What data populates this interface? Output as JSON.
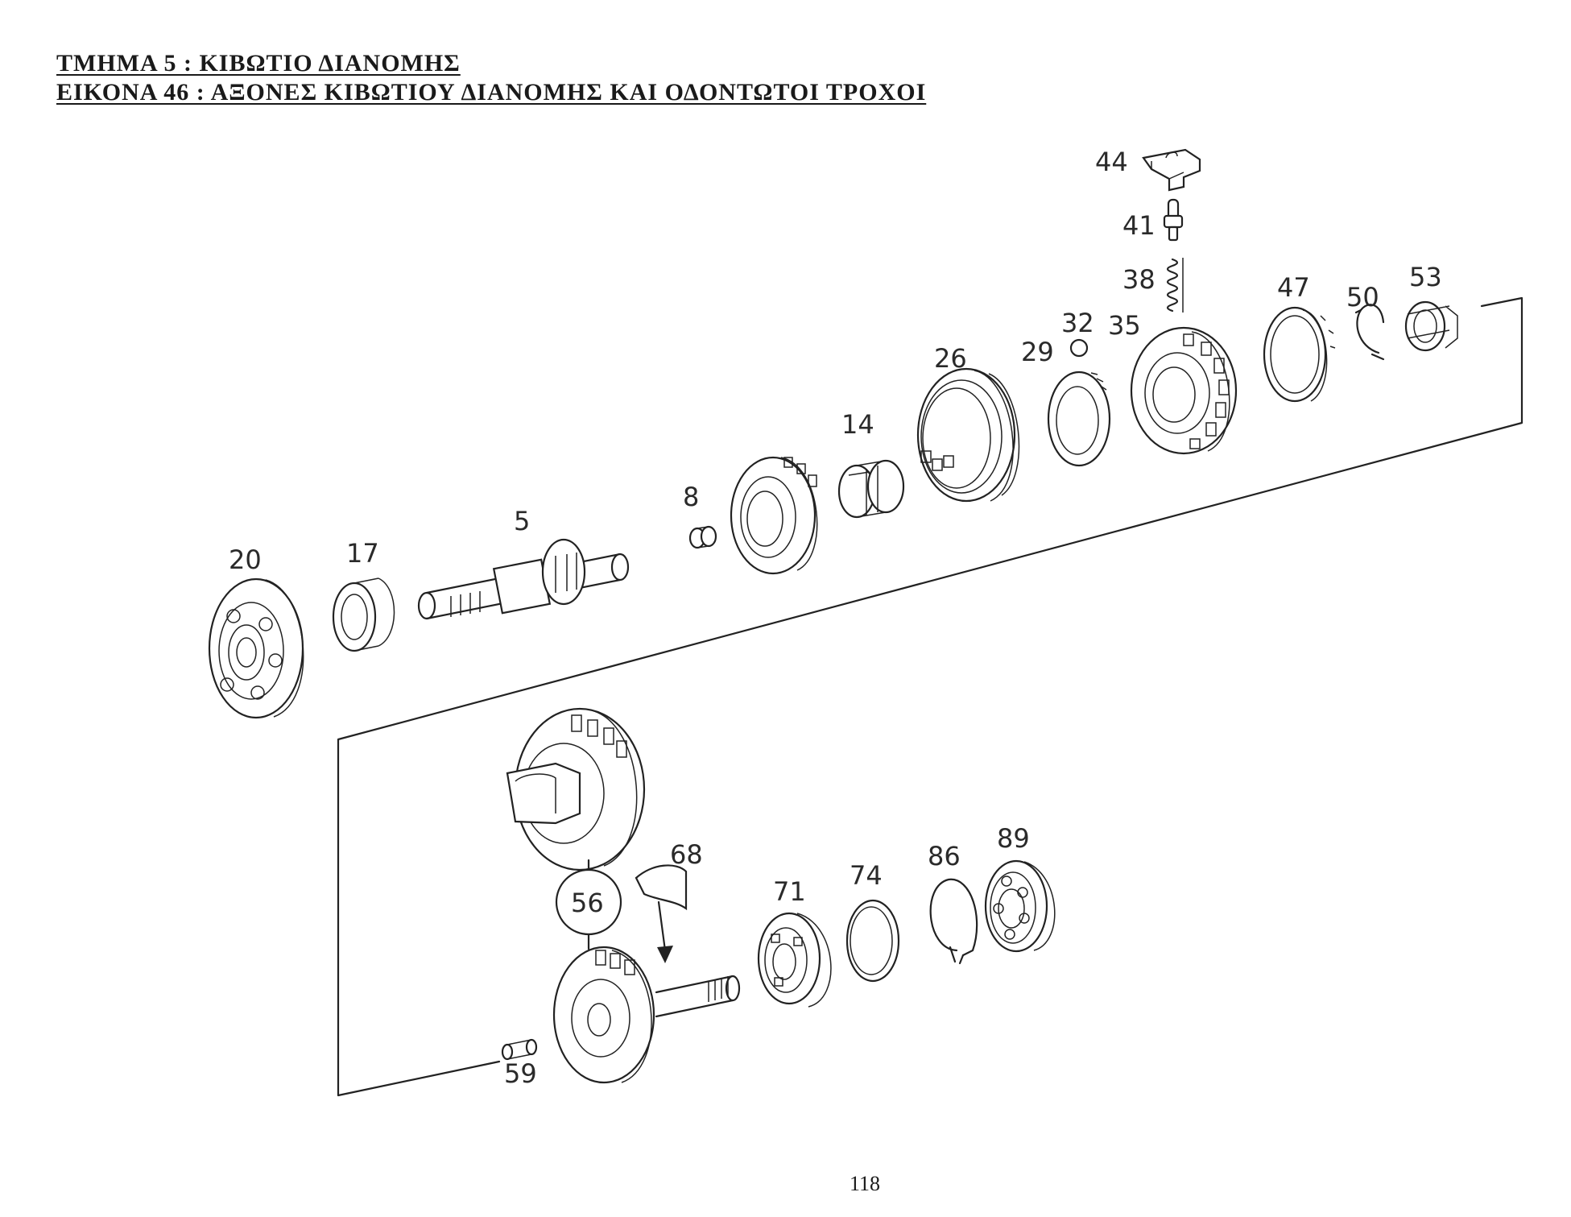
{
  "header": {
    "section": "ΤΜΗΜΑ  5  :  ΚΙΒΩΤΙΟ ΔΙΑΝΟΜΗΣ",
    "figure": "ΕΙΚΟΝΑ 46 :  ΑΞΟΝΕΣ ΚΙΒΩΤΙΟΥ ΔΙΑΝΟΜΗΣ ΚΑΙ  ΟΔΟΝΤΩΤΟΙ ΤΡΟΧΟΙ"
  },
  "parts": {
    "p44": "44",
    "p41": "41",
    "p38": "38",
    "p47": "47",
    "p50": "50",
    "p53": "53",
    "p32": "32",
    "p35": "35",
    "p29": "29",
    "p26": "26",
    "p14": "14",
    "p8": "8",
    "p5": "5",
    "p20": "20",
    "p17": "17",
    "p68": "68",
    "p56": "56",
    "p71": "71",
    "p74": "74",
    "p86": "86",
    "p89": "89",
    "p59": "59"
  },
  "page_number": "118"
}
